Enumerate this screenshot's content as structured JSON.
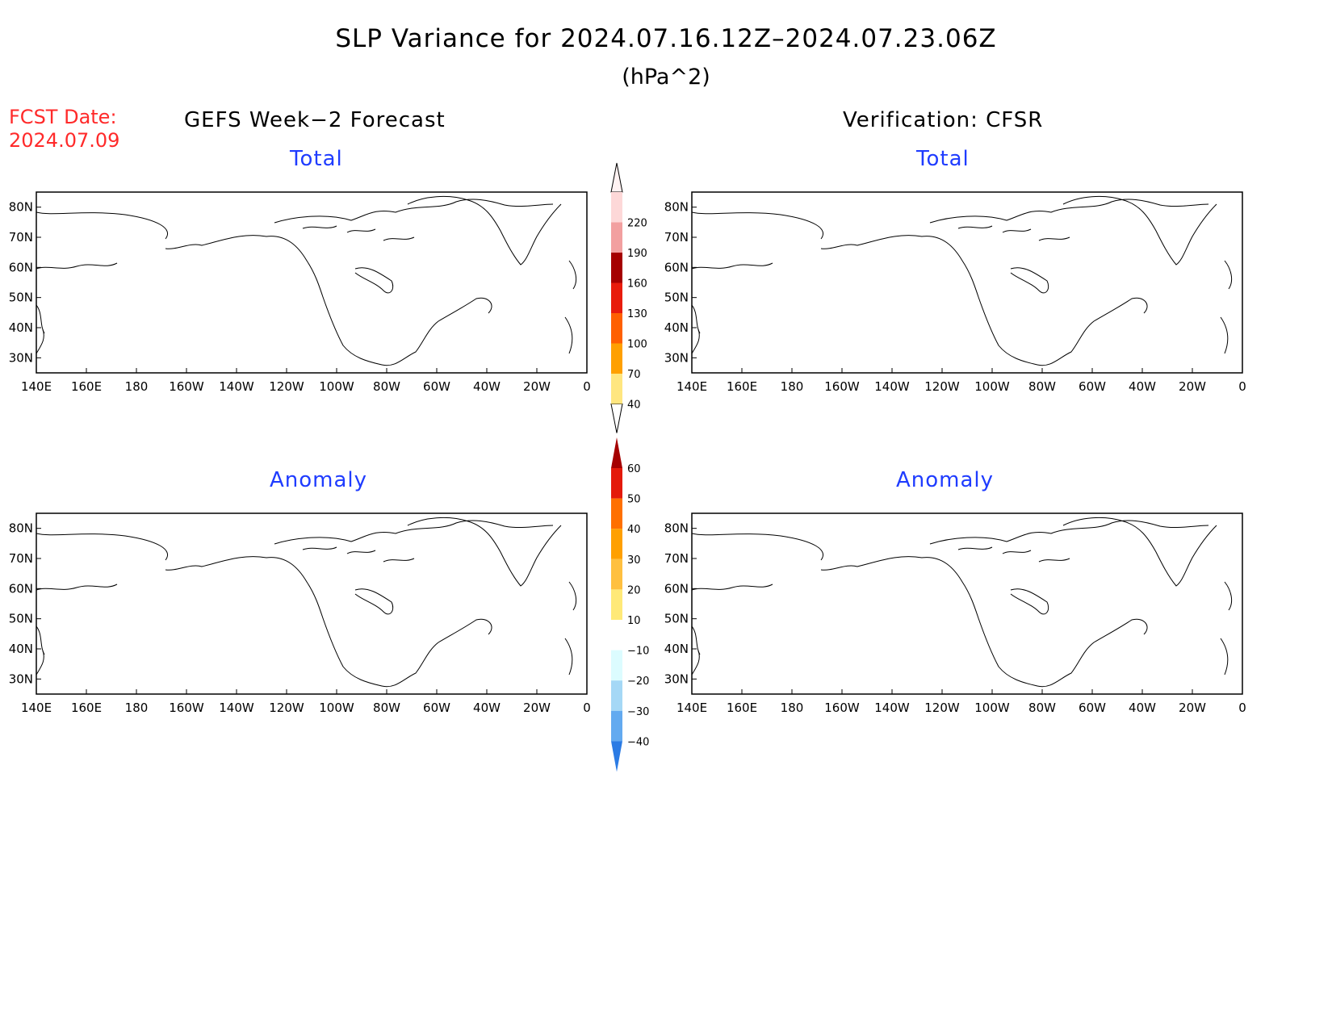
{
  "title": "SLP Variance for 2024.07.16.12Z–2024.07.23.06Z",
  "units": "(hPa^2)",
  "fcst_date_label": "FCST Date:",
  "fcst_date_value": "2024.07.09",
  "left_header": "GEFS Week−2 Forecast",
  "right_header": "Verification: CFSR",
  "panel_titles": {
    "top_left": "Total",
    "top_right": "Total",
    "bottom_left": "Anomaly",
    "bottom_right": "Anomaly"
  },
  "axes": {
    "lon_labels": [
      "140E",
      "160E",
      "180",
      "160W",
      "140W",
      "120W",
      "100W",
      "80W",
      "60W",
      "40W",
      "20W",
      "0"
    ],
    "lat_labels": [
      "80N",
      "70N",
      "60N",
      "50N",
      "40N",
      "30N"
    ],
    "lat_range": [
      25,
      85
    ],
    "lon_range": [
      "140E",
      "0"
    ]
  },
  "total_colorbar": {
    "levels": [
      "40",
      "70",
      "100",
      "130",
      "160",
      "190",
      "220"
    ],
    "colors": [
      "#ffe680",
      "#ffa000",
      "#ff6000",
      "#e81c0c",
      "#a50000",
      "#f2a0a0",
      "#fdd8d8"
    ]
  },
  "anomaly_colorbar": {
    "levels": [
      "60",
      "50",
      "40",
      "30",
      "20",
      "10",
      "−10",
      "−20",
      "−30",
      "−40"
    ],
    "positive_colors": [
      "#ffe978",
      "#ffc040",
      "#ffa000",
      "#ff7000",
      "#e41a0a",
      "#a50000"
    ],
    "negative_colors": [
      "#dcfcff",
      "#a5d8f6",
      "#63aaf0",
      "#2b7be4",
      "#0f4ec2"
    ]
  }
}
